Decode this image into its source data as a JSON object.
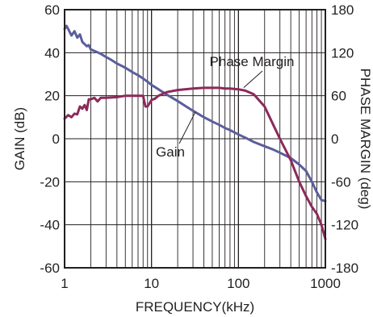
{
  "chart_data": {
    "type": "line",
    "title": "",
    "xlabel": "FREQUENCY(kHz)",
    "ylabel": "GAIN (dB)",
    "y2label": "PHASE MARGIN (deg)",
    "x_scale": "log",
    "xlim": [
      1,
      1000
    ],
    "ylim": [
      -60,
      60
    ],
    "y2lim": [
      -180,
      180
    ],
    "x_ticks": [
      1,
      10,
      100,
      1000
    ],
    "x_tick_labels": [
      "1",
      "10",
      "100",
      "1000"
    ],
    "y_ticks": [
      60,
      40,
      20,
      0,
      -20,
      -40,
      -60
    ],
    "y_tick_labels": [
      "60",
      "40",
      "20",
      "0",
      "-20",
      "-40",
      "-60"
    ],
    "y2_ticks": [
      180,
      120,
      60,
      0,
      -60,
      -120,
      -180
    ],
    "y2_tick_labels": [
      "180",
      "120",
      "60",
      "0",
      "-60",
      "-120",
      "-180"
    ],
    "grid": true,
    "series": [
      {
        "name": "Gain",
        "axis": "left",
        "color": "#5b5e9c",
        "x": [
          1,
          1.05,
          1.1,
          1.2,
          1.3,
          1.4,
          1.5,
          1.6,
          1.7,
          1.8,
          1.9,
          2.0,
          2.3,
          2.6,
          3,
          3.5,
          4,
          5,
          6,
          7,
          8,
          9,
          10,
          12,
          15,
          20,
          25,
          30,
          40,
          50,
          60,
          70,
          80,
          100,
          120,
          150,
          200,
          250,
          300,
          400,
          500,
          600,
          700,
          800,
          900,
          1000
        ],
        "y": [
          51,
          52.5,
          51,
          48,
          50,
          47,
          48.5,
          45,
          44,
          43,
          43.5,
          41.5,
          40.5,
          39.5,
          38,
          36.5,
          35,
          33,
          31,
          29.5,
          28,
          26.5,
          25,
          23,
          20.5,
          17.5,
          15,
          13,
          10,
          8,
          6.5,
          5,
          4,
          2,
          0.5,
          -1.5,
          -3.5,
          -5,
          -6.5,
          -9,
          -12,
          -15,
          -20,
          -25,
          -28.5,
          -29
        ]
      },
      {
        "name": "Phase Margin",
        "axis": "right",
        "color": "#8c2a5b",
        "x": [
          1,
          1.1,
          1.2,
          1.3,
          1.4,
          1.5,
          1.6,
          1.7,
          1.8,
          1.9,
          2,
          2.2,
          2.4,
          2.6,
          3,
          4,
          5,
          6,
          7,
          8,
          8.5,
          9,
          10,
          11,
          12,
          15,
          20,
          30,
          40,
          50,
          60,
          70,
          80,
          100,
          120,
          150,
          200,
          250,
          300,
          400,
          500,
          600,
          700,
          800,
          900,
          1000
        ],
        "y": [
          28,
          33,
          30,
          35,
          34,
          45,
          42,
          47,
          40,
          55,
          55,
          57,
          52,
          57,
          57,
          58,
          60,
          60,
          60,
          60,
          45,
          45,
          54,
          56,
          60,
          65,
          68,
          70,
          71,
          71,
          71,
          70,
          70,
          69,
          67,
          62,
          45,
          20,
          0,
          -30,
          -60,
          -80,
          -95,
          -105,
          -120,
          -140
        ]
      }
    ],
    "annotations": [
      {
        "text": "Phase Margin"
      },
      {
        "text": "Gain"
      }
    ]
  }
}
